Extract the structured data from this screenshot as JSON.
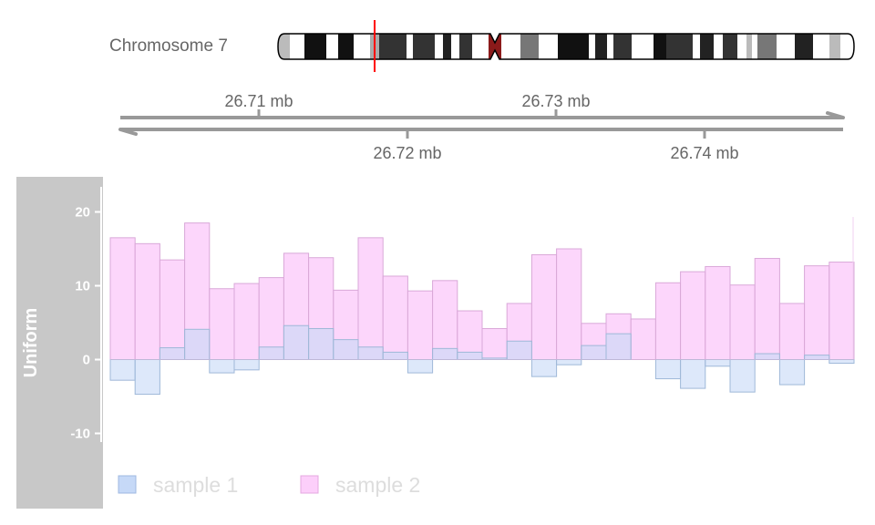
{
  "ideogram": {
    "label": "Chromosome 7",
    "colors": {
      "outline": "#000000",
      "highlight": "#ff0000",
      "centromere": "#8b1a1a"
    }
  },
  "axis": {
    "ticks_top": [
      "26.71 mb",
      "26.73 mb"
    ],
    "ticks_bottom": [
      "26.72 mb",
      "26.74 mb"
    ],
    "color": "#999999"
  },
  "track": {
    "title": "Uniform",
    "panel_color": "#c8c8c8"
  },
  "chart_data": {
    "type": "bar",
    "title": "",
    "xlabel": "",
    "ylabel": "Uniform",
    "ylim": [
      -14,
      22
    ],
    "yticks": [
      20,
      10,
      0,
      -10
    ],
    "grid": false,
    "legend_position": "bottom-left",
    "x_range_mb": [
      26.7005,
      26.7505
    ],
    "series": [
      {
        "name": "sample 1",
        "color": "#c6d9f7",
        "values": [
          -2.8,
          -4.7,
          1.6,
          4.1,
          -1.8,
          -1.4,
          1.7,
          4.6,
          4.2,
          2.7,
          1.7,
          1.0,
          -1.8,
          1.5,
          1.0,
          0.2,
          2.5,
          -2.3,
          -0.7,
          1.9,
          3.5,
          0.0,
          -2.6,
          -3.9,
          -0.9,
          -4.4,
          0.8,
          -3.4,
          0.6,
          -0.5
        ]
      },
      {
        "name": "sample 2",
        "color": "#fccffa",
        "values": [
          16.5,
          15.7,
          13.5,
          18.5,
          9.6,
          10.3,
          11.1,
          14.4,
          13.8,
          9.4,
          16.5,
          11.3,
          9.3,
          10.7,
          6.6,
          4.2,
          7.6,
          14.2,
          15.0,
          4.9,
          6.2,
          5.5,
          10.4,
          11.9,
          12.6,
          10.1,
          13.7,
          7.6,
          12.7,
          13.2
        ]
      }
    ]
  }
}
